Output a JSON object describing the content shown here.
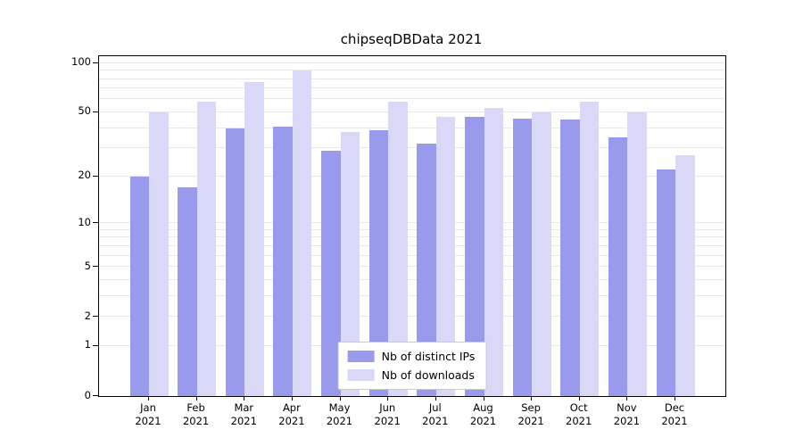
{
  "chart_data": {
    "type": "bar",
    "title": "chipseqDBData 2021",
    "y_scale": "log1p",
    "ylim": [
      0,
      110
    ],
    "yticks": [
      0,
      1,
      2,
      5,
      10,
      20,
      50,
      100
    ],
    "gridlines": [
      1,
      2,
      3,
      4,
      5,
      6,
      7,
      8,
      9,
      10,
      20,
      30,
      40,
      50,
      60,
      70,
      80,
      90,
      100
    ],
    "categories": [
      "Jan 2021",
      "Feb 2021",
      "Mar 2021",
      "Apr 2021",
      "May 2021",
      "Jun 2021",
      "Jul 2021",
      "Aug 2021",
      "Sep 2021",
      "Oct 2021",
      "Nov 2021",
      "Dec 2021"
    ],
    "series": [
      {
        "name": "Nb of distinct IPs",
        "color": "#9a9aec",
        "values": [
          20,
          17,
          40,
          41,
          29,
          39,
          32,
          47,
          46,
          45,
          35,
          22
        ]
      },
      {
        "name": "Nb of downloads",
        "color": "#d9d9f7",
        "values": [
          50,
          58,
          77,
          90,
          38,
          58,
          47,
          53,
          50,
          58,
          50,
          27
        ]
      }
    ],
    "legend_position": "lower center",
    "grid": "on"
  }
}
